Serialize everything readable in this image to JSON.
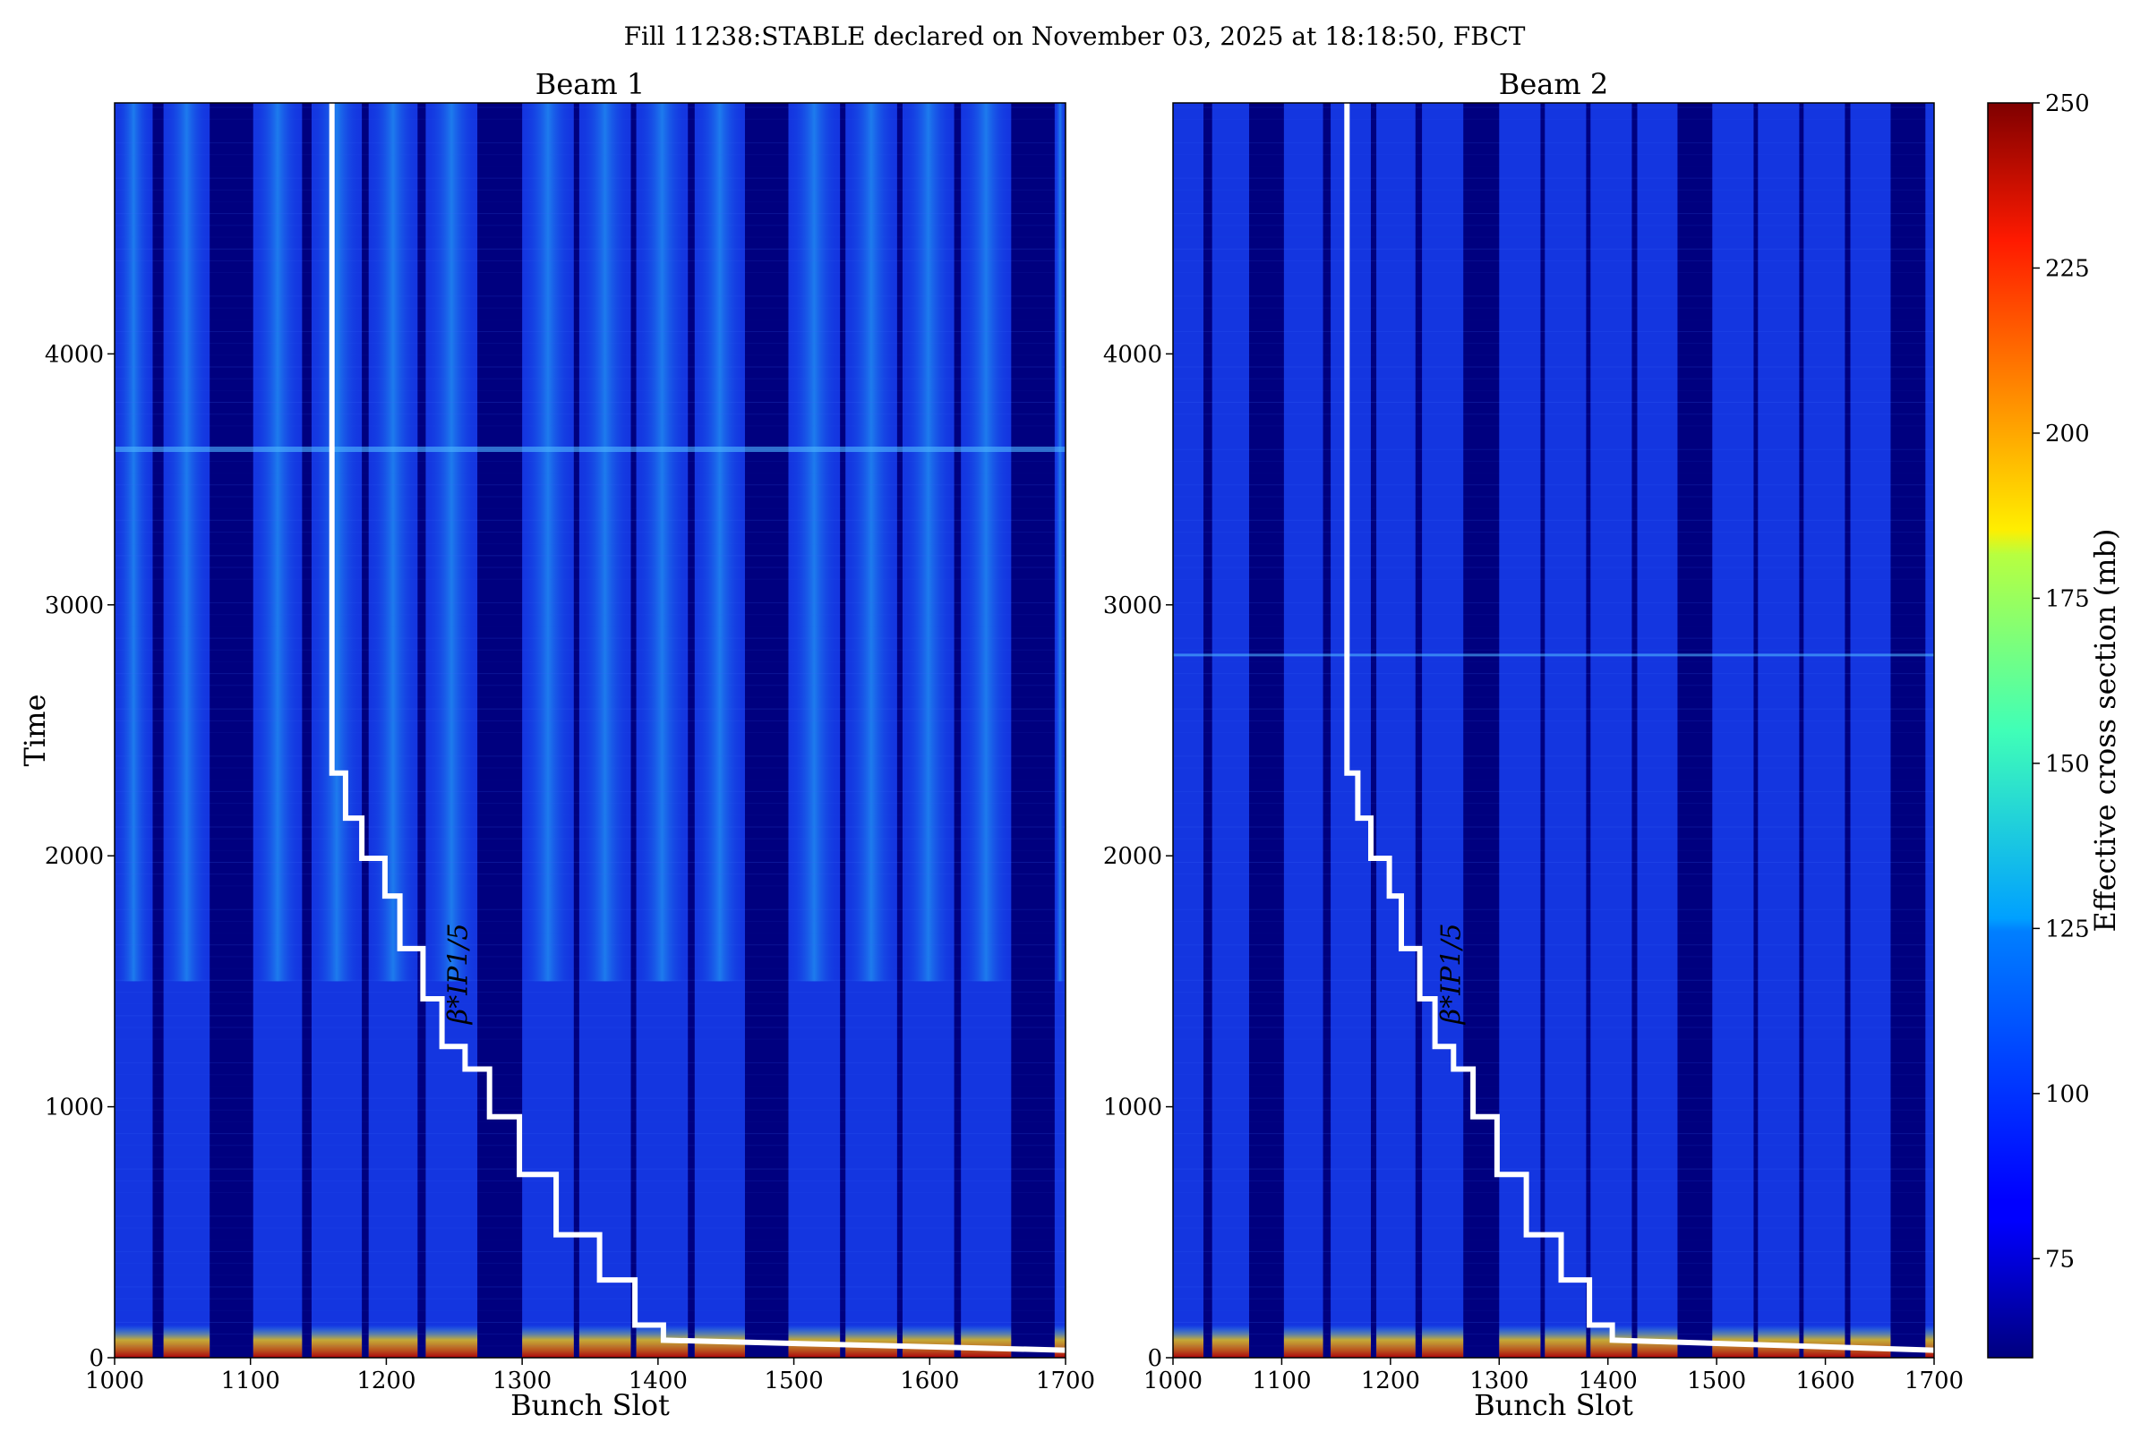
{
  "figure": {
    "suptitle": "Fill 11238:STABLE declared on November 03, 2025 at 18:18:50, FBCT"
  },
  "chart_data": [
    {
      "type": "heatmap",
      "title": "Beam 1",
      "xlabel": "Bunch Slot",
      "ylabel": "Time",
      "xlim": [
        1000,
        1700
      ],
      "ylim": [
        0,
        5000
      ],
      "xticks": [
        "1000",
        "1100",
        "1200",
        "1300",
        "1400",
        "1500",
        "1600",
        "1700"
      ],
      "yticks": [
        "0",
        "1000",
        "2000",
        "3000",
        "4000"
      ],
      "filled_trains": [
        [
          1000,
          1028
        ],
        [
          1036,
          1070
        ],
        [
          1102,
          1138
        ],
        [
          1145,
          1182
        ],
        [
          1187,
          1223
        ],
        [
          1229,
          1267
        ],
        [
          1300,
          1338
        ],
        [
          1342,
          1380
        ],
        [
          1384,
          1422
        ],
        [
          1427,
          1464
        ],
        [
          1496,
          1534
        ],
        [
          1538,
          1576
        ],
        [
          1580,
          1618
        ],
        [
          1623,
          1660
        ],
        [
          1692,
          1700
        ]
      ],
      "overlay": {
        "label": "β*IP1/5",
        "color": "#ffffff",
        "steps": [
          [
            1160,
            5000
          ],
          [
            1160,
            2330
          ],
          [
            1170,
            2330
          ],
          [
            1170,
            2150
          ],
          [
            1182,
            2150
          ],
          [
            1182,
            1990
          ],
          [
            1199,
            1990
          ],
          [
            1199,
            1840
          ],
          [
            1210,
            1840
          ],
          [
            1210,
            1630
          ],
          [
            1227,
            1630
          ],
          [
            1227,
            1430
          ],
          [
            1241,
            1430
          ],
          [
            1241,
            1240
          ],
          [
            1258,
            1240
          ],
          [
            1258,
            1150
          ],
          [
            1276,
            1150
          ],
          [
            1276,
            960
          ],
          [
            1298,
            960
          ],
          [
            1298,
            730
          ],
          [
            1325,
            730
          ],
          [
            1325,
            490
          ],
          [
            1357,
            490
          ],
          [
            1357,
            310
          ],
          [
            1383,
            310
          ],
          [
            1383,
            130
          ],
          [
            1404,
            130
          ],
          [
            1404,
            70
          ],
          [
            1700,
            30
          ]
        ]
      }
    },
    {
      "type": "heatmap",
      "title": "Beam 2",
      "xlabel": "Bunch Slot",
      "ylabel": "",
      "xlim": [
        1000,
        1700
      ],
      "ylim": [
        0,
        5000
      ],
      "xticks": [
        "1000",
        "1100",
        "1200",
        "1300",
        "1400",
        "1500",
        "1600",
        "1700"
      ],
      "yticks": [
        "0",
        "1000",
        "2000",
        "3000",
        "4000"
      ],
      "filled_trains": [
        [
          1000,
          1028
        ],
        [
          1036,
          1070
        ],
        [
          1102,
          1138
        ],
        [
          1145,
          1182
        ],
        [
          1187,
          1223
        ],
        [
          1229,
          1267
        ],
        [
          1300,
          1338
        ],
        [
          1342,
          1380
        ],
        [
          1384,
          1422
        ],
        [
          1427,
          1464
        ],
        [
          1496,
          1534
        ],
        [
          1538,
          1576
        ],
        [
          1580,
          1618
        ],
        [
          1623,
          1660
        ],
        [
          1692,
          1700
        ]
      ],
      "overlay": {
        "label": "β*IP1/5",
        "color": "#ffffff",
        "steps": [
          [
            1160,
            5000
          ],
          [
            1160,
            2330
          ],
          [
            1170,
            2330
          ],
          [
            1170,
            2150
          ],
          [
            1182,
            2150
          ],
          [
            1182,
            1990
          ],
          [
            1199,
            1990
          ],
          [
            1199,
            1840
          ],
          [
            1210,
            1840
          ],
          [
            1210,
            1630
          ],
          [
            1227,
            1630
          ],
          [
            1227,
            1430
          ],
          [
            1241,
            1430
          ],
          [
            1241,
            1240
          ],
          [
            1258,
            1240
          ],
          [
            1258,
            1150
          ],
          [
            1276,
            1150
          ],
          [
            1276,
            960
          ],
          [
            1298,
            960
          ],
          [
            1298,
            730
          ],
          [
            1325,
            730
          ],
          [
            1325,
            490
          ],
          [
            1357,
            490
          ],
          [
            1357,
            310
          ],
          [
            1383,
            310
          ],
          [
            1383,
            130
          ],
          [
            1404,
            130
          ],
          [
            1404,
            70
          ],
          [
            1700,
            30
          ]
        ]
      }
    }
  ],
  "colorbar": {
    "label": "Effective cross section (mb)",
    "range": [
      60,
      250
    ],
    "ticks": [
      "75",
      "100",
      "125",
      "150",
      "175",
      "200",
      "225",
      "250"
    ],
    "colormap": "jet"
  }
}
